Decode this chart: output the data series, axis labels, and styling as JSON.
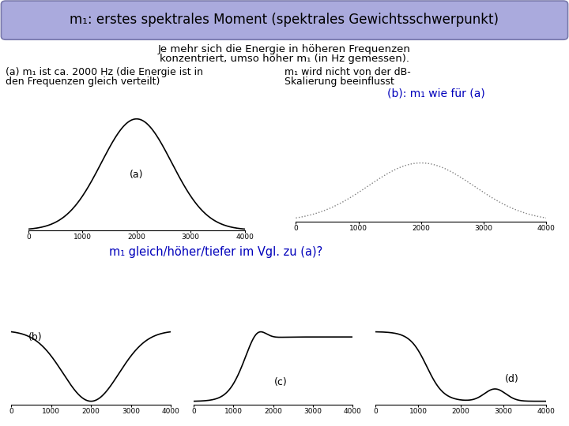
{
  "title_box_text": "m₁: erstes spektrales Moment (spektrales Gewichtsschwerpunkt)",
  "title_box_bg": "#aaaadd",
  "title_box_border": "#7777aa",
  "subtitle_line1": "Je mehr sich die Energie in höheren Frequenzen",
  "subtitle_line2": "konzentriert, umso höher m₁ (in Hz gemessen).",
  "text_a_left1": "(a) m₁ ist ca. 2000 Hz (die Energie ist in",
  "text_a_left2": "den Frequenzen gleich verteilt)",
  "text_a_right1": "m₁ wird nicht von der dB-",
  "text_a_right2": "Skalierung beeinflusst",
  "label_b_right": "(b): m₁ wie für (a)",
  "question_text": "m₁ gleich/höher/tiefer im Vgl. zu (a)?",
  "bg_color": "#ffffff",
  "text_color": "#000000",
  "blue_color": "#0000bb",
  "gauss_mean": 2000,
  "gauss_std": 650
}
